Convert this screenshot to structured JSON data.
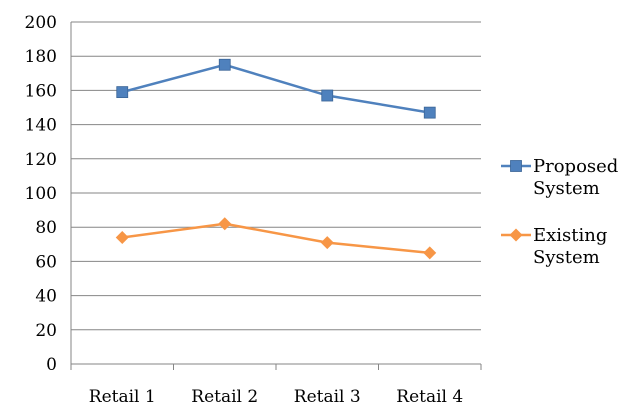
{
  "chart_data": {
    "type": "line",
    "categories": [
      "Retail 1",
      "Retail 2",
      "Retail 3",
      "Retail 4"
    ],
    "series": [
      {
        "name": "Proposed System",
        "legend_lines": [
          "Proposed",
          "System"
        ],
        "values": [
          159,
          175,
          157,
          147
        ],
        "color": "#4f81bd",
        "marker": "square"
      },
      {
        "name": "Existing System",
        "legend_lines": [
          "Existing",
          "System"
        ],
        "values": [
          74,
          82,
          71,
          65
        ],
        "color": "#f79646",
        "marker": "diamond"
      }
    ],
    "ylim": [
      0,
      200
    ],
    "y_ticks": [
      "0",
      "20",
      "40",
      "60",
      "80",
      "100",
      "120",
      "140",
      "160",
      "180",
      "200"
    ],
    "grid": true,
    "legend_position": "right",
    "title": "",
    "xlabel": "",
    "ylabel": ""
  }
}
